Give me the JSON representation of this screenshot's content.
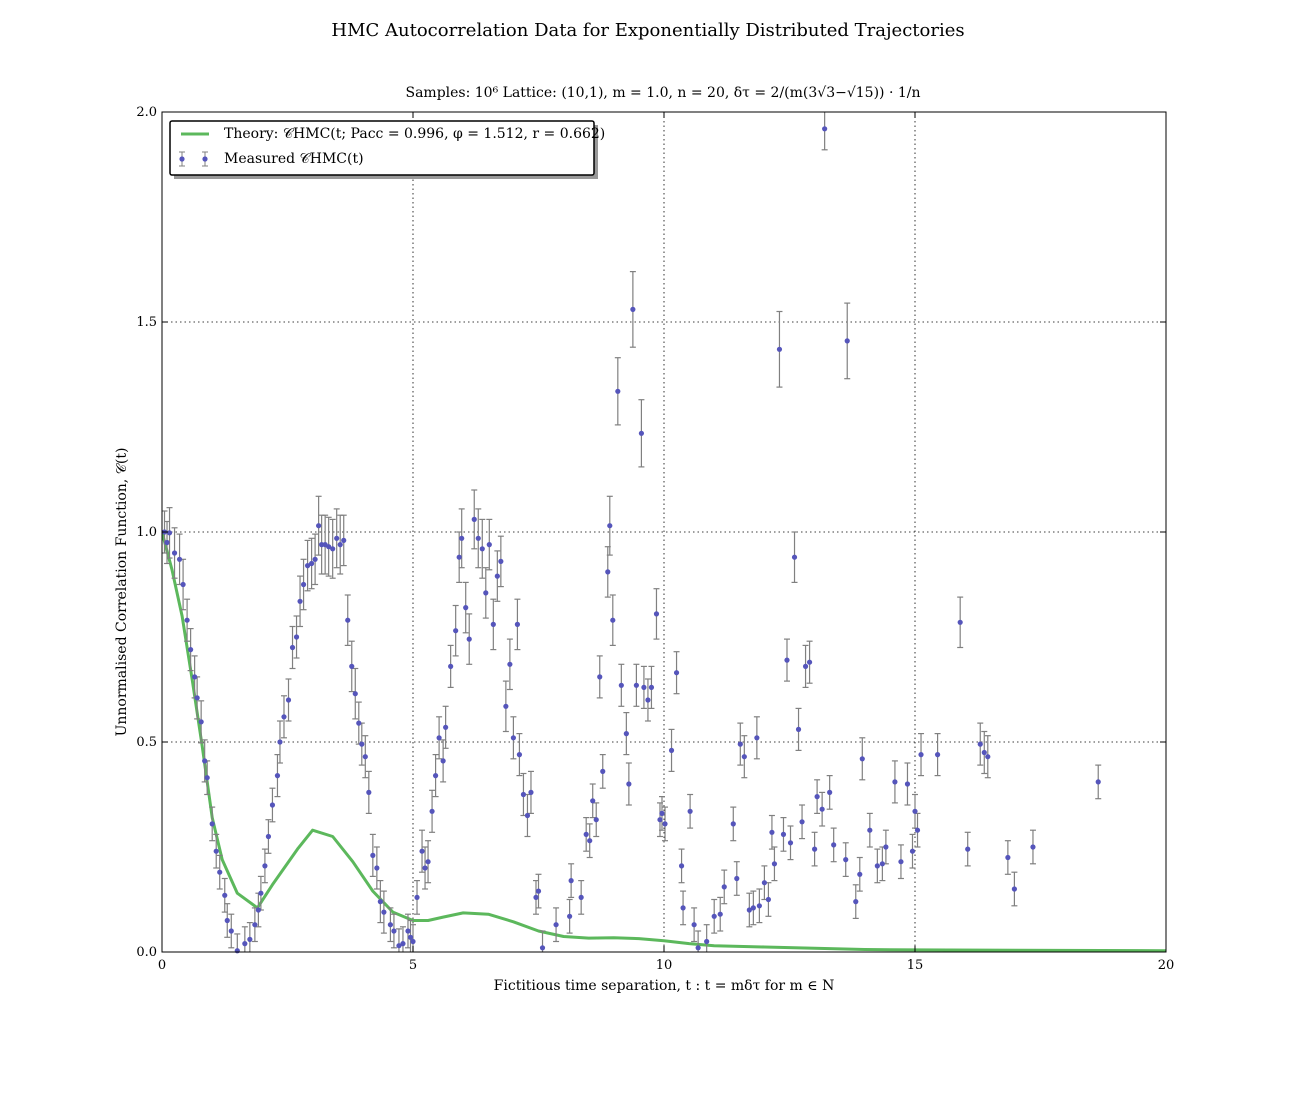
{
  "page": {
    "title": "HMC Autocorrelation Data for Exponentially Distributed Trajectories",
    "subtitle": "Samples: 10⁶ Lattice: (10,1), m = 1.0, n = 20, δτ = 2/(m(3√3−√15)) · 1/n"
  },
  "chart_data": {
    "type": "scatter",
    "title": "HMC Autocorrelation Data for Exponentially Distributed Trajectories",
    "subtitle": "Samples: 10⁶ Lattice: (10,1), m = 1.0, n = 20, δτ = 2/(m(3√3−√15)) · 1/n",
    "xlabel": "Fictitious time separation, t : t = mδτ for m ∈ N",
    "ylabel": "Unnormalised Correlation Function, 𝒞(t)",
    "xlim": [
      0,
      20
    ],
    "ylim": [
      0.0,
      2.0
    ],
    "xticks": [
      0,
      5,
      10,
      15,
      20
    ],
    "yticks": [
      0.0,
      0.5,
      1.0,
      1.5,
      2.0
    ],
    "xtick_labels": [
      "0",
      "5",
      "10",
      "15",
      "20"
    ],
    "ytick_labels": [
      "0.0",
      "0.5",
      "1.0",
      "1.5",
      "2.0"
    ],
    "grid": true,
    "legend_position": "top-left",
    "colors": {
      "theory": "#5cb85c",
      "measured": "#5555bb",
      "errorbar": "#808080"
    },
    "series": [
      {
        "name": "Theory: 𝒞HMC(t; Pacc = 0.996, φ = 1.512, r = 0.662)",
        "kind": "line",
        "x": [
          0,
          0.2,
          0.4,
          0.6,
          0.8,
          1.0,
          1.2,
          1.5,
          1.9,
          2.2,
          2.7,
          3.0,
          3.4,
          3.8,
          4.2,
          4.6,
          5.0,
          5.3,
          5.6,
          6.0,
          6.5,
          7.0,
          7.5,
          8.0,
          8.5,
          9.0,
          9.5,
          10.0,
          10.5,
          11.0,
          12.0,
          13.0,
          14.0,
          15.0,
          17.0,
          20.0
        ],
        "y": [
          1.0,
          0.91,
          0.8,
          0.65,
          0.49,
          0.32,
          0.22,
          0.14,
          0.105,
          0.16,
          0.245,
          0.29,
          0.275,
          0.215,
          0.145,
          0.095,
          0.075,
          0.075,
          0.083,
          0.093,
          0.09,
          0.072,
          0.05,
          0.037,
          0.033,
          0.034,
          0.032,
          0.027,
          0.02,
          0.015,
          0.012,
          0.009,
          0.006,
          0.005,
          0.004,
          0.003
        ]
      },
      {
        "name": "Measured 𝒞HMC(t)",
        "kind": "errorbar",
        "points": [
          [
            0.05,
            1.0,
            0.05
          ],
          [
            0.1,
            0.975,
            0.05
          ],
          [
            0.15,
            0.998,
            0.06
          ],
          [
            0.25,
            0.95,
            0.06
          ],
          [
            0.35,
            0.935,
            0.06
          ],
          [
            0.42,
            0.875,
            0.06
          ],
          [
            0.5,
            0.79,
            0.05
          ],
          [
            0.57,
            0.72,
            0.05
          ],
          [
            0.65,
            0.655,
            0.05
          ],
          [
            0.7,
            0.605,
            0.05
          ],
          [
            0.78,
            0.548,
            0.05
          ],
          [
            0.85,
            0.455,
            0.05
          ],
          [
            0.9,
            0.415,
            0.04
          ],
          [
            1.0,
            0.305,
            0.04
          ],
          [
            1.08,
            0.24,
            0.04
          ],
          [
            1.15,
            0.19,
            0.04
          ],
          [
            1.25,
            0.135,
            0.04
          ],
          [
            1.3,
            0.075,
            0.04
          ],
          [
            1.38,
            0.05,
            0.04
          ],
          [
            1.5,
            0.003,
            0.04
          ],
          [
            1.65,
            0.02,
            0.04
          ],
          [
            1.75,
            0.03,
            0.04
          ],
          [
            1.85,
            0.065,
            0.04
          ],
          [
            1.92,
            0.1,
            0.04
          ],
          [
            1.97,
            0.14,
            0.04
          ],
          [
            2.05,
            0.205,
            0.04
          ],
          [
            2.12,
            0.275,
            0.04
          ],
          [
            2.2,
            0.35,
            0.04
          ],
          [
            2.3,
            0.42,
            0.05
          ],
          [
            2.35,
            0.5,
            0.05
          ],
          [
            2.43,
            0.56,
            0.05
          ],
          [
            2.52,
            0.6,
            0.05
          ],
          [
            2.6,
            0.725,
            0.05
          ],
          [
            2.68,
            0.75,
            0.05
          ],
          [
            2.75,
            0.835,
            0.06
          ],
          [
            2.82,
            0.875,
            0.06
          ],
          [
            2.9,
            0.92,
            0.06
          ],
          [
            2.98,
            0.925,
            0.06
          ],
          [
            3.05,
            0.935,
            0.06
          ],
          [
            3.12,
            1.015,
            0.07
          ],
          [
            3.18,
            0.97,
            0.07
          ],
          [
            3.25,
            0.97,
            0.07
          ],
          [
            3.32,
            0.965,
            0.07
          ],
          [
            3.4,
            0.96,
            0.07
          ],
          [
            3.48,
            0.985,
            0.07
          ],
          [
            3.55,
            0.97,
            0.07
          ],
          [
            3.62,
            0.98,
            0.06
          ],
          [
            3.7,
            0.79,
            0.06
          ],
          [
            3.78,
            0.68,
            0.06
          ],
          [
            3.85,
            0.615,
            0.06
          ],
          [
            3.92,
            0.545,
            0.05
          ],
          [
            3.98,
            0.495,
            0.05
          ],
          [
            4.05,
            0.465,
            0.05
          ],
          [
            4.12,
            0.38,
            0.05
          ],
          [
            4.2,
            0.23,
            0.05
          ],
          [
            4.28,
            0.2,
            0.05
          ],
          [
            4.35,
            0.12,
            0.05
          ],
          [
            4.42,
            0.095,
            0.05
          ],
          [
            4.55,
            0.065,
            0.04
          ],
          [
            4.62,
            0.05,
            0.04
          ],
          [
            4.72,
            0.015,
            0.04
          ],
          [
            4.8,
            0.02,
            0.04
          ],
          [
            4.9,
            0.05,
            0.04
          ],
          [
            4.95,
            0.035,
            0.04
          ],
          [
            5.0,
            0.025,
            0.04
          ],
          [
            5.08,
            0.13,
            0.04
          ],
          [
            5.18,
            0.24,
            0.05
          ],
          [
            5.24,
            0.2,
            0.05
          ],
          [
            5.3,
            0.215,
            0.05
          ],
          [
            5.38,
            0.335,
            0.05
          ],
          [
            5.45,
            0.42,
            0.05
          ],
          [
            5.52,
            0.51,
            0.05
          ],
          [
            5.6,
            0.455,
            0.05
          ],
          [
            5.65,
            0.535,
            0.05
          ],
          [
            5.75,
            0.68,
            0.05
          ],
          [
            5.85,
            0.765,
            0.06
          ],
          [
            5.92,
            0.94,
            0.06
          ],
          [
            5.97,
            0.985,
            0.07
          ],
          [
            6.05,
            0.82,
            0.06
          ],
          [
            6.12,
            0.745,
            0.06
          ],
          [
            6.22,
            1.03,
            0.07
          ],
          [
            6.3,
            0.985,
            0.07
          ],
          [
            6.38,
            0.96,
            0.07
          ],
          [
            6.45,
            0.855,
            0.06
          ],
          [
            6.52,
            0.97,
            0.06
          ],
          [
            6.6,
            0.78,
            0.06
          ],
          [
            6.68,
            0.895,
            0.06
          ],
          [
            6.75,
            0.93,
            0.06
          ],
          [
            6.85,
            0.585,
            0.06
          ],
          [
            6.93,
            0.685,
            0.06
          ],
          [
            7.0,
            0.51,
            0.05
          ],
          [
            7.08,
            0.78,
            0.06
          ],
          [
            7.12,
            0.47,
            0.05
          ],
          [
            7.2,
            0.375,
            0.05
          ],
          [
            7.28,
            0.325,
            0.05
          ],
          [
            7.35,
            0.38,
            0.05
          ],
          [
            7.45,
            0.13,
            0.04
          ],
          [
            7.5,
            0.145,
            0.04
          ],
          [
            7.58,
            0.01,
            0.04
          ],
          [
            7.85,
            0.065,
            0.04
          ],
          [
            8.12,
            0.085,
            0.04
          ],
          [
            8.15,
            0.17,
            0.04
          ],
          [
            8.35,
            0.13,
            0.04
          ],
          [
            8.45,
            0.28,
            0.04
          ],
          [
            8.52,
            0.265,
            0.04
          ],
          [
            8.58,
            0.36,
            0.04
          ],
          [
            8.65,
            0.315,
            0.04
          ],
          [
            8.72,
            0.655,
            0.05
          ],
          [
            8.78,
            0.43,
            0.04
          ],
          [
            8.88,
            0.905,
            0.06
          ],
          [
            8.92,
            1.015,
            0.07
          ],
          [
            8.98,
            0.79,
            0.06
          ],
          [
            9.08,
            1.335,
            0.08
          ],
          [
            9.15,
            0.635,
            0.05
          ],
          [
            9.25,
            0.52,
            0.05
          ],
          [
            9.3,
            0.4,
            0.05
          ],
          [
            9.38,
            1.53,
            0.09
          ],
          [
            9.45,
            0.635,
            0.05
          ],
          [
            9.55,
            1.235,
            0.08
          ],
          [
            9.6,
            0.63,
            0.05
          ],
          [
            9.68,
            0.6,
            0.05
          ],
          [
            9.75,
            0.63,
            0.05
          ],
          [
            9.85,
            0.805,
            0.06
          ],
          [
            9.92,
            0.315,
            0.04
          ],
          [
            9.96,
            0.33,
            0.04
          ],
          [
            10.02,
            0.305,
            0.04
          ],
          [
            10.15,
            0.48,
            0.05
          ],
          [
            10.25,
            0.665,
            0.05
          ],
          [
            10.35,
            0.205,
            0.04
          ],
          [
            10.38,
            0.105,
            0.04
          ],
          [
            10.52,
            0.335,
            0.04
          ],
          [
            10.6,
            0.065,
            0.04
          ],
          [
            10.68,
            0.01,
            0.04
          ],
          [
            10.85,
            0.025,
            0.04
          ],
          [
            11.0,
            0.085,
            0.04
          ],
          [
            11.12,
            0.09,
            0.04
          ],
          [
            11.2,
            0.155,
            0.04
          ],
          [
            11.38,
            0.305,
            0.04
          ],
          [
            11.45,
            0.175,
            0.04
          ],
          [
            11.52,
            0.495,
            0.05
          ],
          [
            11.6,
            0.465,
            0.05
          ],
          [
            11.7,
            0.1,
            0.04
          ],
          [
            11.78,
            0.105,
            0.04
          ],
          [
            11.85,
            0.51,
            0.05
          ],
          [
            11.9,
            0.11,
            0.04
          ],
          [
            12.0,
            0.165,
            0.04
          ],
          [
            12.08,
            0.125,
            0.04
          ],
          [
            12.15,
            0.285,
            0.04
          ],
          [
            12.2,
            0.21,
            0.04
          ],
          [
            12.3,
            1.435,
            0.09
          ],
          [
            12.38,
            0.28,
            0.04
          ],
          [
            12.45,
            0.695,
            0.05
          ],
          [
            12.52,
            0.26,
            0.04
          ],
          [
            12.6,
            0.94,
            0.06
          ],
          [
            12.68,
            0.53,
            0.05
          ],
          [
            12.75,
            0.31,
            0.04
          ],
          [
            12.82,
            0.68,
            0.05
          ],
          [
            12.9,
            0.69,
            0.05
          ],
          [
            13.0,
            0.245,
            0.04
          ],
          [
            13.05,
            0.37,
            0.04
          ],
          [
            13.15,
            0.34,
            0.04
          ],
          [
            13.2,
            1.96,
            0.05
          ],
          [
            13.3,
            0.38,
            0.04
          ],
          [
            13.38,
            0.255,
            0.04
          ],
          [
            13.62,
            0.22,
            0.04
          ],
          [
            13.65,
            1.455,
            0.09
          ],
          [
            13.82,
            0.12,
            0.04
          ],
          [
            13.9,
            0.185,
            0.04
          ],
          [
            13.95,
            0.46,
            0.05
          ],
          [
            14.1,
            0.29,
            0.04
          ],
          [
            14.25,
            0.205,
            0.04
          ],
          [
            14.35,
            0.21,
            0.04
          ],
          [
            14.42,
            0.25,
            0.04
          ],
          [
            14.6,
            0.405,
            0.05
          ],
          [
            14.72,
            0.215,
            0.04
          ],
          [
            14.85,
            0.4,
            0.05
          ],
          [
            14.95,
            0.24,
            0.04
          ],
          [
            15.0,
            0.335,
            0.04
          ],
          [
            15.05,
            0.29,
            0.04
          ],
          [
            15.12,
            0.47,
            0.05
          ],
          [
            15.45,
            0.47,
            0.05
          ],
          [
            15.9,
            0.785,
            0.06
          ],
          [
            16.05,
            0.245,
            0.04
          ],
          [
            16.3,
            0.495,
            0.05
          ],
          [
            16.38,
            0.475,
            0.05
          ],
          [
            16.45,
            0.465,
            0.05
          ],
          [
            16.85,
            0.225,
            0.04
          ],
          [
            16.98,
            0.15,
            0.04
          ],
          [
            17.35,
            0.25,
            0.04
          ],
          [
            18.65,
            0.405,
            0.04
          ]
        ]
      }
    ]
  }
}
